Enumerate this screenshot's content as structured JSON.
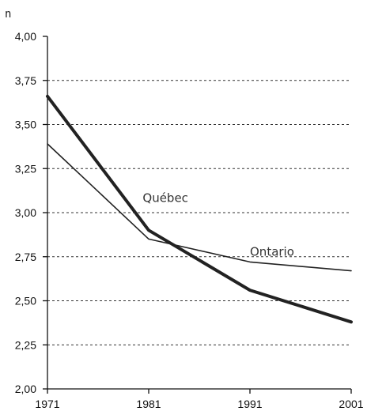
{
  "chart_data": {
    "type": "line",
    "ylabel": "n",
    "x": [
      "1971",
      "1981",
      "1991",
      "2001"
    ],
    "yticks": [
      "2,00",
      "2,25",
      "2,50",
      "2,75",
      "3,00",
      "3,25",
      "3,50",
      "3,75",
      "4,00"
    ],
    "ylim": [
      2.0,
      4.0
    ],
    "grid": "horizontal dotted",
    "series": [
      {
        "name": "Québec",
        "values": [
          3.66,
          2.9,
          2.56,
          2.38
        ],
        "color": "#222222",
        "emphasis": "thick"
      },
      {
        "name": "Ontario",
        "values": [
          3.39,
          2.85,
          2.72,
          2.67
        ],
        "color": "#222222",
        "emphasis": "thin"
      }
    ]
  }
}
